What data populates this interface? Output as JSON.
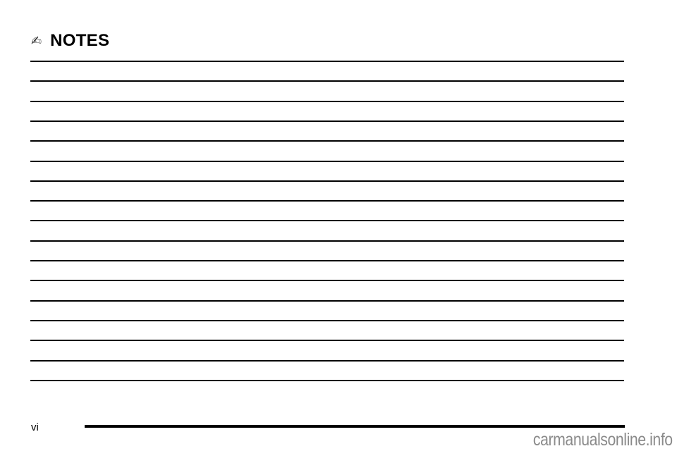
{
  "header": {
    "icon": "writing-hand-icon",
    "icon_glyph": "✍",
    "title": "NOTES"
  },
  "note_lines_count": 17,
  "footer": {
    "page_number": "vi"
  },
  "watermark": "carmanualsonline.info"
}
